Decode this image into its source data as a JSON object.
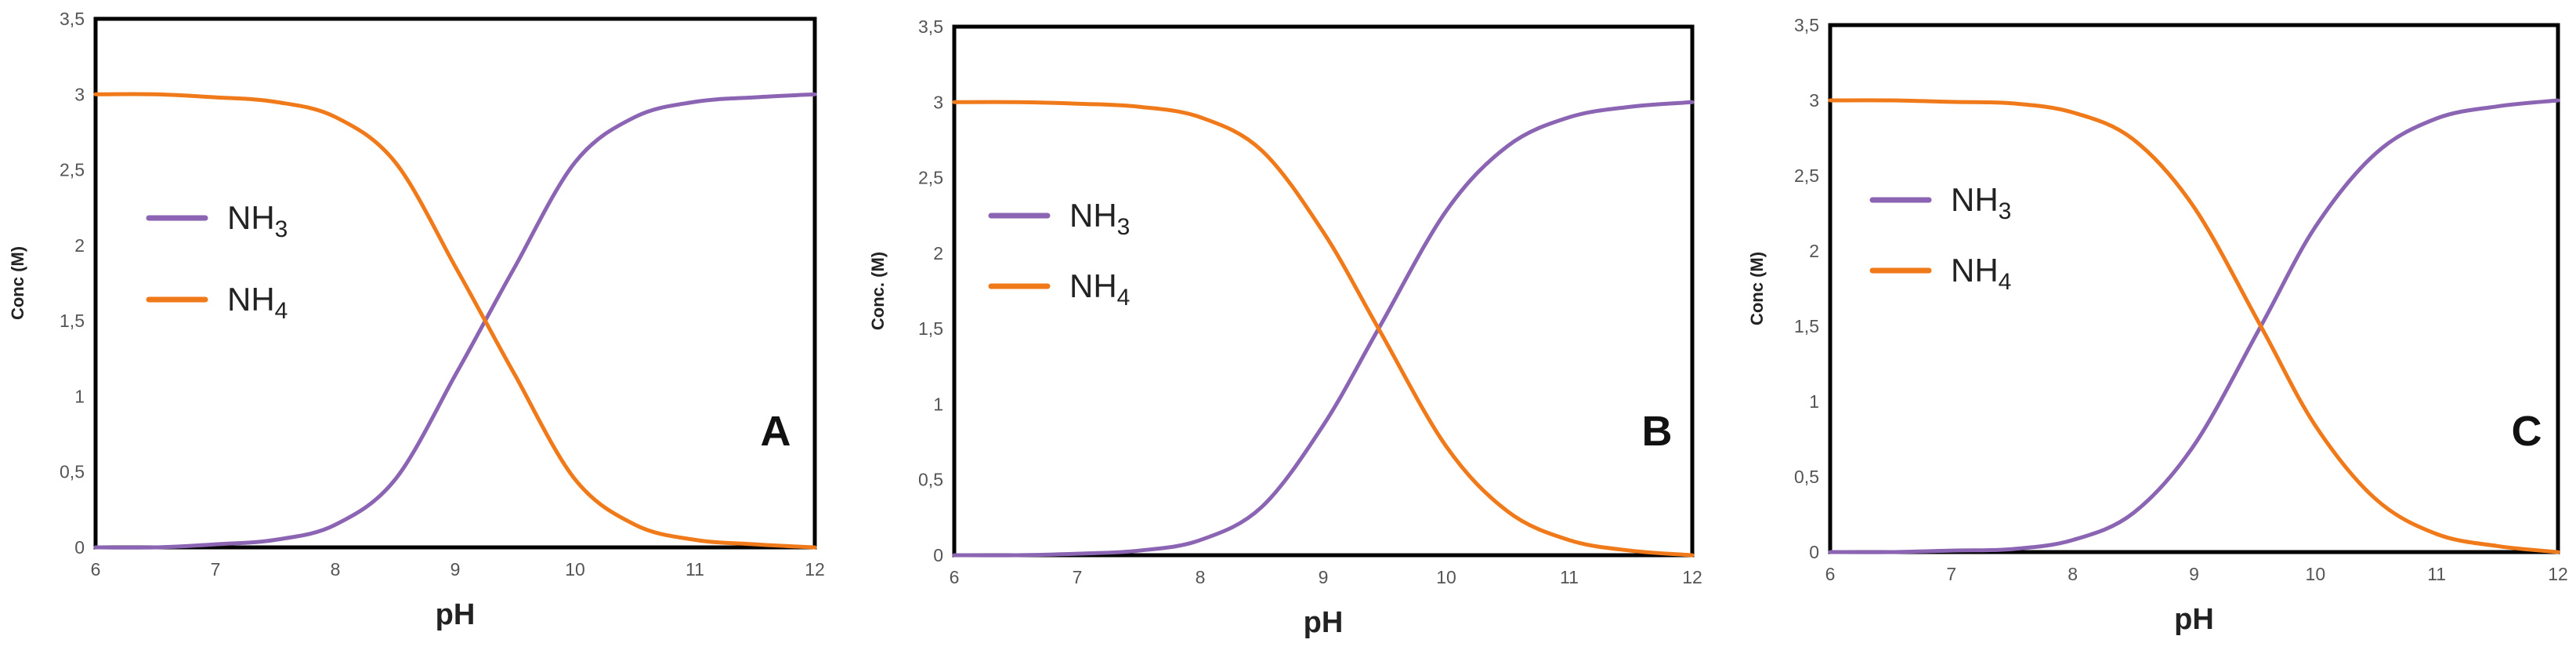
{
  "chart_data": [
    {
      "type": "line",
      "panel_label": "A",
      "xlabel": "pH",
      "ylabel": "Conc (M)",
      "xlim": [
        6,
        12
      ],
      "ylim": [
        0,
        3.5
      ],
      "x_ticks": [
        "6",
        "7",
        "8",
        "9",
        "10",
        "11",
        "12"
      ],
      "y_ticks": [
        "0",
        "0,5",
        "1",
        "1,5",
        "2",
        "2,5",
        "3",
        "3,5"
      ],
      "grid": false,
      "legend_position": "left",
      "series": [
        {
          "name_main": "NH",
          "name_sub": "3",
          "color": "#8b65b3",
          "x": [
            6,
            6.5,
            7,
            7.5,
            8,
            8.5,
            9,
            9.25,
            9.5,
            10,
            10.5,
            11,
            11.5,
            12
          ],
          "y": [
            0.0,
            0.0,
            0.02,
            0.05,
            0.15,
            0.45,
            1.14,
            1.5,
            1.86,
            2.55,
            2.85,
            2.95,
            2.98,
            3.0
          ]
        },
        {
          "name_main": "NH",
          "name_sub": "4",
          "color": "#f07a1a",
          "x": [
            6,
            6.5,
            7,
            7.5,
            8,
            8.5,
            9,
            9.25,
            9.5,
            10,
            10.5,
            11,
            11.5,
            12
          ],
          "y": [
            3.0,
            3.0,
            2.98,
            2.95,
            2.85,
            2.55,
            1.86,
            1.5,
            1.14,
            0.45,
            0.15,
            0.05,
            0.02,
            0.0
          ]
        }
      ]
    },
    {
      "type": "line",
      "panel_label": "B",
      "xlabel": "pH",
      "ylabel": "Conc. (M)",
      "xlim": [
        6,
        12
      ],
      "ylim": [
        0,
        3.5
      ],
      "x_ticks": [
        "6",
        "7",
        "8",
        "9",
        "10",
        "11",
        "12"
      ],
      "y_ticks": [
        "0",
        "0,5",
        "1",
        "1,5",
        "2",
        "2,5",
        "3",
        "3,5"
      ],
      "grid": false,
      "legend_position": "left",
      "series": [
        {
          "name_main": "NH",
          "name_sub": "3",
          "color": "#8b65b3",
          "x": [
            6,
            6.5,
            7,
            7.5,
            8,
            8.5,
            9,
            9.45,
            10,
            10.5,
            11,
            11.5,
            12
          ],
          "y": [
            0.0,
            0.0,
            0.01,
            0.03,
            0.1,
            0.32,
            0.86,
            1.5,
            2.28,
            2.71,
            2.9,
            2.97,
            3.0
          ]
        },
        {
          "name_main": "NH",
          "name_sub": "4",
          "color": "#f07a1a",
          "x": [
            6,
            6.5,
            7,
            7.5,
            8,
            8.5,
            9,
            9.45,
            10,
            10.5,
            11,
            11.5,
            12
          ],
          "y": [
            3.0,
            3.0,
            2.99,
            2.97,
            2.9,
            2.68,
            2.14,
            1.5,
            0.72,
            0.29,
            0.1,
            0.03,
            0.0
          ]
        }
      ]
    },
    {
      "type": "line",
      "panel_label": "C",
      "xlabel": "pH",
      "ylabel": "Conc (M)",
      "xlim": [
        6,
        12
      ],
      "ylim": [
        0,
        3.5
      ],
      "x_ticks": [
        "6",
        "7",
        "8",
        "9",
        "10",
        "11",
        "12"
      ],
      "y_ticks": [
        "0",
        "0,5",
        "1",
        "1,5",
        "2",
        "2,5",
        "3",
        "3,5"
      ],
      "grid": false,
      "legend_position": "left",
      "series": [
        {
          "name_main": "NH",
          "name_sub": "3",
          "color": "#8b65b3",
          "x": [
            6,
            6.5,
            7,
            7.5,
            8,
            8.5,
            9,
            9.55,
            10,
            10.5,
            11,
            11.5,
            12
          ],
          "y": [
            0.0,
            0.0,
            0.01,
            0.02,
            0.08,
            0.26,
            0.71,
            1.5,
            2.16,
            2.65,
            2.88,
            2.96,
            3.0
          ]
        },
        {
          "name_main": "NH",
          "name_sub": "4",
          "color": "#f07a1a",
          "x": [
            6,
            6.5,
            7,
            7.5,
            8,
            8.5,
            9,
            9.55,
            10,
            10.5,
            11,
            11.5,
            12
          ],
          "y": [
            3.0,
            3.0,
            2.99,
            2.98,
            2.92,
            2.74,
            2.29,
            1.5,
            0.84,
            0.35,
            0.12,
            0.04,
            0.0
          ]
        }
      ]
    }
  ]
}
